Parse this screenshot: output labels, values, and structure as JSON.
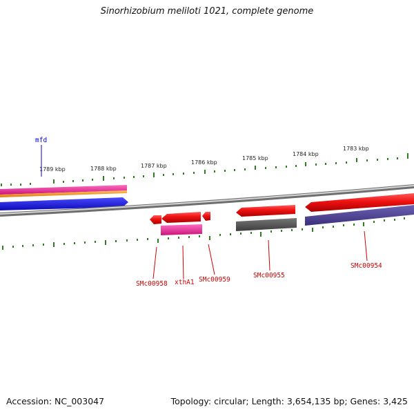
{
  "title": "Sinorhizobium meliloti 1021, complete genome",
  "footer": {
    "accession": "Accession: NC_003047",
    "summary": "Topology: circular; Length: 3,654,135 bp; Genes: 3,425"
  },
  "scale_labels": [
    "1789 kbp",
    "1788 kbp",
    "1787 kbp",
    "1786 kbp",
    "1785 kbp",
    "1784 kbp",
    "1783 kbp"
  ],
  "gene_labels": {
    "mfd": "mfd",
    "smc00958": "SMc00958",
    "xthA1": "xthA1",
    "smc00959": "SMc00959",
    "smc00955": "SMc00955",
    "smc00954": "SMc00954"
  },
  "colors": {
    "backbone": "#8c8c8c",
    "scale_ticks": "#2e7d1e",
    "forward_gene": "#e81010",
    "gene_label": "#cc0000",
    "mfd_label": "#0000cc",
    "track_magenta": "#e0208a",
    "track_orange": "#f08a1a",
    "track_blue": "#1a1ae0",
    "track_gray": "#555555",
    "track_slate": "#4a3f8c"
  }
}
